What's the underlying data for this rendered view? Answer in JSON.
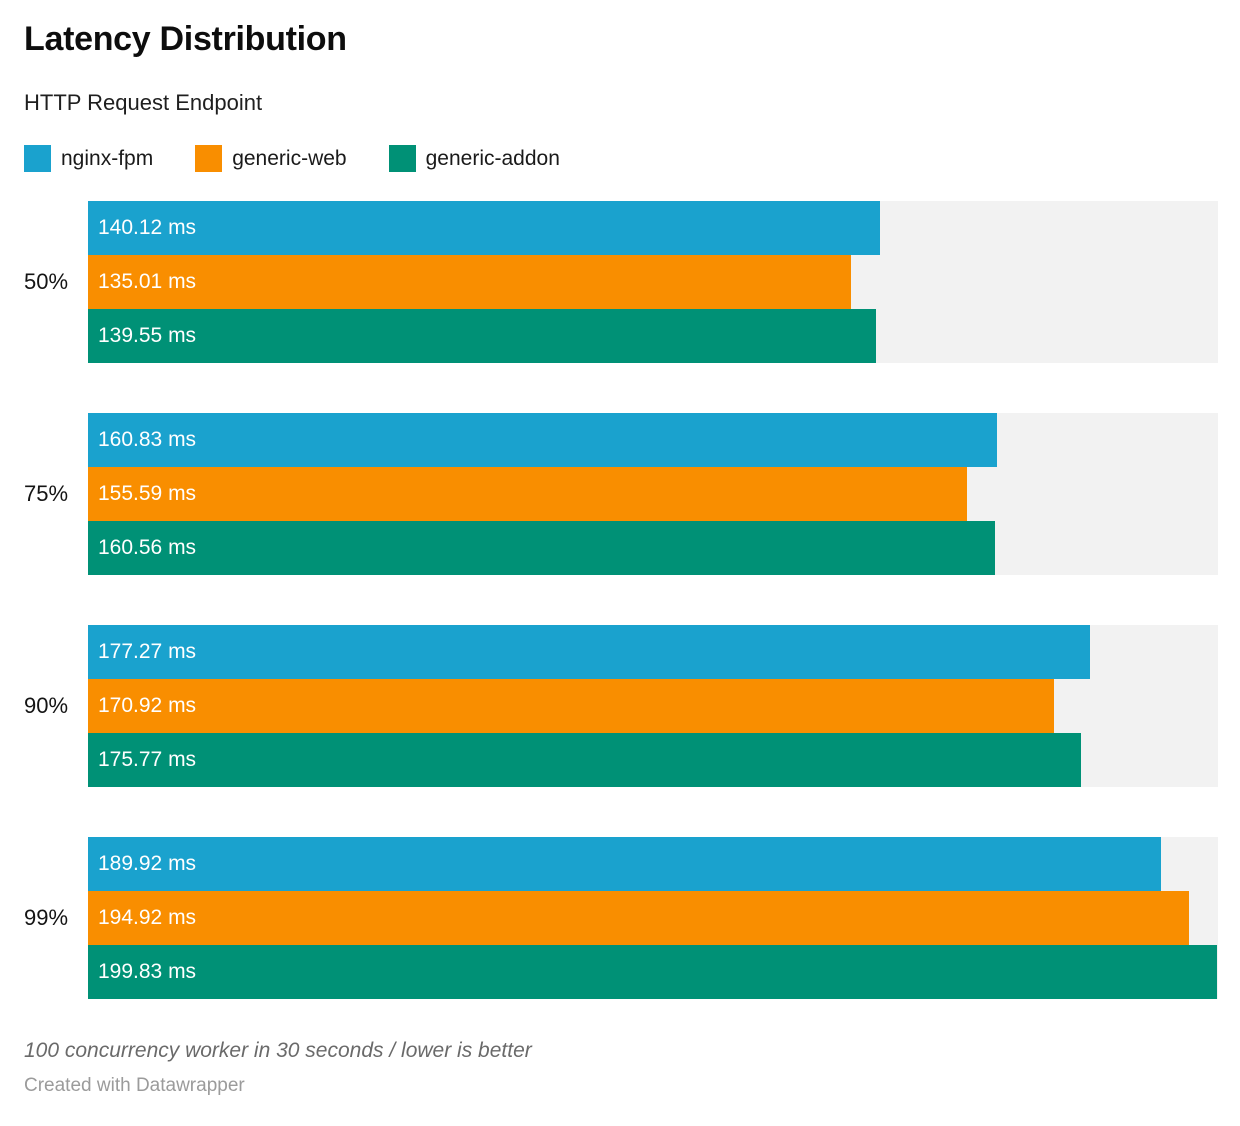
{
  "header": {
    "title": "Latency Distribution",
    "subtitle": "HTTP Request Endpoint"
  },
  "legend": [
    {
      "label": "nginx-fpm",
      "color": "#1aa2ce"
    },
    {
      "label": "generic-web",
      "color": "#f98e00"
    },
    {
      "label": "generic-addon",
      "color": "#009176"
    }
  ],
  "chart_data": {
    "type": "bar",
    "orientation": "horizontal",
    "title": "Latency Distribution",
    "subtitle": "HTTP Request Endpoint",
    "categories": [
      "50%",
      "75%",
      "90%",
      "99%"
    ],
    "series": [
      {
        "name": "nginx-fpm",
        "color": "#1aa2ce",
        "values": [
          140.12,
          160.83,
          177.27,
          189.92
        ]
      },
      {
        "name": "generic-web",
        "color": "#f98e00",
        "values": [
          135.01,
          155.59,
          170.92,
          194.92
        ]
      },
      {
        "name": "generic-addon",
        "color": "#009176",
        "values": [
          139.55,
          160.56,
          175.77,
          199.83
        ]
      }
    ],
    "value_suffix": " ms",
    "value_decimals": 2,
    "xlim": [
      0,
      200
    ],
    "track_color": "#f2f2f2",
    "grid": false,
    "legend_position": "top",
    "value_labels_inside_bars": true
  },
  "footer": {
    "note": "100 concurrency worker in 30 seconds / lower is better",
    "credit": "Created with Datawrapper"
  }
}
